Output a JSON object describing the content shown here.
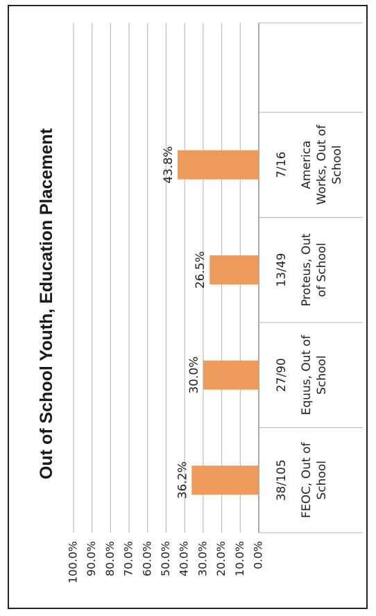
{
  "chart_data": {
    "type": "bar",
    "title": "Out of School Youth, Education Placement",
    "categories": [
      [
        "38/105",
        "FEOC, Out of",
        "School"
      ],
      [
        "27/90",
        "Equus, Out of",
        "School"
      ],
      [
        "13/49",
        "Proteus, Out",
        "of School"
      ],
      [
        "7/16",
        "America",
        "Works, Out of",
        "School"
      ]
    ],
    "values": [
      36.2,
      30.0,
      26.5,
      43.8
    ],
    "value_labels": [
      "36.2%",
      "30.0%",
      "26.5%",
      "43.8%"
    ],
    "ytick_labels": [
      "0.0%",
      "10.0%",
      "20.0%",
      "30.0%",
      "40.0%",
      "50.0%",
      "60.0%",
      "70.0%",
      "80.0%",
      "90.0%",
      "100.0%"
    ],
    "ylim": [
      0,
      100
    ],
    "grid": true,
    "bar_color": "#EE9A5B",
    "xlabel": "",
    "ylabel": ""
  }
}
